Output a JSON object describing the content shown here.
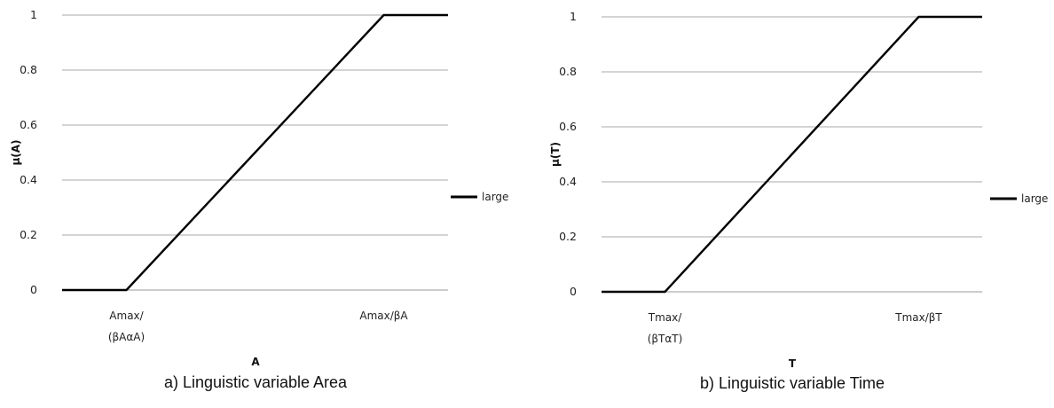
{
  "chart_data": [
    {
      "type": "line",
      "caption": "a) Linguistic variable Area",
      "xlabel": "A",
      "ylabel": "μ(A)",
      "ylim": [
        0,
        1
      ],
      "yticks": [
        "0",
        "0.2",
        "0.4",
        "0.6",
        "0.8",
        "1"
      ],
      "categories": [
        "Amax/\n(βAαA)",
        "Amax/βA"
      ],
      "series": [
        {
          "name": "large",
          "color": "#000000",
          "points": [
            [
              0,
              0
            ],
            [
              0.5,
              0
            ],
            [
              2.5,
              1
            ],
            [
              3,
              1
            ]
          ]
        }
      ],
      "legend_position": "right",
      "grid": true
    },
    {
      "type": "line",
      "caption": "b) Linguistic variable Time",
      "xlabel": "T",
      "ylabel": "μ(T)",
      "ylim": [
        0,
        1
      ],
      "yticks": [
        "0",
        "0.2",
        "0.4",
        "0.6",
        "0.8",
        "1"
      ],
      "categories": [
        "Tmax/\n(βTαT)",
        "Tmax/βT"
      ],
      "series": [
        {
          "name": "large",
          "color": "#000000",
          "points": [
            [
              0,
              0
            ],
            [
              0.5,
              0
            ],
            [
              2.5,
              1
            ],
            [
              3,
              1
            ]
          ]
        }
      ],
      "legend_position": "right",
      "grid": true
    }
  ]
}
